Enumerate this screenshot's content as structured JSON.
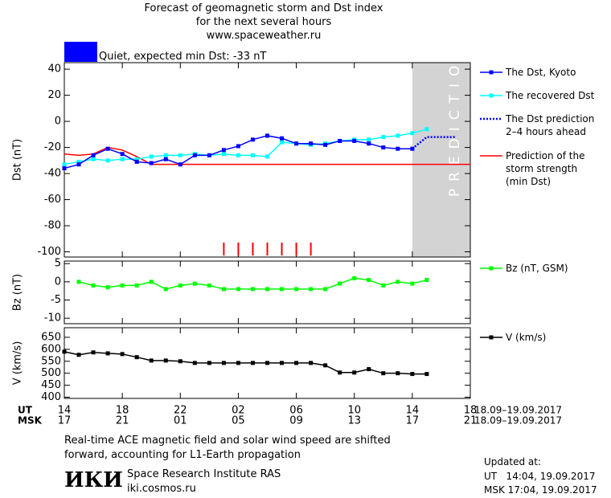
{
  "header": {
    "title_lines": [
      "Forecast of geomagnetic storm and Dst index",
      "for the next several hours",
      "www.spaceweather.ru"
    ],
    "status": "Quiet, expected min Dst: -33 nT",
    "status_color": "#0000ff"
  },
  "chart_data": [
    {
      "type": "line",
      "ylabel": "Dst (nT)",
      "xlim": [
        0,
        28
      ],
      "ylim": [
        -104,
        45
      ],
      "yticks": [
        40,
        20,
        0,
        -20,
        -40,
        -60,
        -80,
        -100
      ],
      "shade_xlim": [
        24,
        28
      ],
      "shade_label": "PREDICTION",
      "shade_color": "#d3d3d3",
      "storm_marks": [
        11,
        12,
        13,
        14,
        15,
        16,
        17
      ],
      "storm_color": "#ff0000",
      "series": [
        {
          "name": "The Dst, Kyoto",
          "color": "#0000ff",
          "marker": true,
          "x": [
            0,
            1,
            2,
            3,
            4,
            5,
            6,
            7,
            8,
            9,
            10,
            11,
            12,
            13,
            14,
            15,
            16,
            17,
            18,
            19,
            20,
            21,
            22,
            23,
            24
          ],
          "values": [
            -36,
            -33,
            -26,
            -21,
            -25,
            -31,
            -32,
            -29,
            -33,
            -26,
            -26,
            -22,
            -19,
            -14,
            -11,
            -13,
            -17,
            -17,
            -18,
            -15,
            -15,
            -17,
            -20,
            -21,
            -21
          ]
        },
        {
          "name": "The recovered Dst",
          "color": "#00ffff",
          "marker": true,
          "x": [
            0,
            1,
            2,
            3,
            4,
            5,
            6,
            7,
            8,
            9,
            10,
            11,
            12,
            13,
            14,
            15,
            16,
            17,
            18,
            19,
            20,
            21,
            22,
            23,
            24,
            25
          ],
          "values": [
            -33,
            -31,
            -29,
            -30,
            -29,
            -29,
            -27,
            -26,
            -26,
            -25,
            -26,
            -25,
            -26,
            -26,
            -27,
            -16,
            -17,
            -18,
            -17,
            -15,
            -14,
            -14,
            -12,
            -11,
            -9,
            -6
          ]
        },
        {
          "name": "The Dst prediction\n2–4 hours ahead",
          "color": "#0000ff",
          "dashed": true,
          "x": [
            24,
            25,
            27
          ],
          "values": [
            -21,
            -12,
            -12
          ]
        },
        {
          "name": "Prediction of the\nstorm strength\n(min Dst)",
          "color": "#ff0000",
          "x": [
            0,
            1,
            2,
            3,
            4,
            5,
            6,
            28
          ],
          "values": [
            -25,
            -26,
            -25,
            -20,
            -22,
            -27,
            -33,
            -33
          ]
        }
      ]
    },
    {
      "type": "line",
      "ylabel": "Bz (nT)",
      "xlim": [
        0,
        28
      ],
      "ylim": [
        -11.5,
        5.7
      ],
      "yticks": [
        5,
        0,
        -5,
        -10
      ],
      "series": [
        {
          "name": "Bz (nT, GSM)",
          "color": "#00ff00",
          "marker": true,
          "x": [
            1,
            2,
            3,
            4,
            5,
            6,
            7,
            8,
            9,
            10,
            11,
            12,
            13,
            14,
            15,
            16,
            17,
            18,
            19,
            20,
            21,
            22,
            23,
            24,
            25
          ],
          "values": [
            0,
            -1,
            -1.5,
            -1,
            -1,
            0,
            -2,
            -1,
            -0.5,
            -1,
            -2,
            -2,
            -2,
            -2,
            -2,
            -2,
            -2,
            -2,
            -0.5,
            1,
            0.5,
            -1,
            0,
            -0.5,
            0.5
          ]
        }
      ]
    },
    {
      "type": "line",
      "ylabel": "V (km/s)",
      "xlim": [
        0,
        28
      ],
      "ylim": [
        395,
        690
      ],
      "yticks": [
        650,
        600,
        550,
        500,
        450,
        400
      ],
      "xticks": [
        {
          "value": 0,
          "label": "14"
        },
        {
          "value": 4,
          "label": "18"
        },
        {
          "value": 8,
          "label": "22"
        },
        {
          "value": 12,
          "label": "02"
        },
        {
          "value": 16,
          "label": "06"
        },
        {
          "value": 20,
          "label": "10"
        },
        {
          "value": 24,
          "label": "14"
        },
        {
          "value": 28,
          "label": "18"
        }
      ],
      "msk_ticks": [
        {
          "value": 0,
          "label": "17"
        },
        {
          "value": 4,
          "label": "21"
        },
        {
          "value": 8,
          "label": "01"
        },
        {
          "value": 12,
          "label": "05"
        },
        {
          "value": 16,
          "label": "09"
        },
        {
          "value": 20,
          "label": "13"
        },
        {
          "value": 24,
          "label": "17"
        },
        {
          "value": 28,
          "label": "21"
        }
      ],
      "x_row_labels": [
        "UT",
        "MSK"
      ],
      "date_range": [
        "18.09–19.09.2017",
        "18.09–19.09.2017"
      ],
      "series": [
        {
          "name": "V (km/s)",
          "color": "#000000",
          "marker": true,
          "x": [
            0,
            1,
            2,
            3,
            4,
            5,
            6,
            7,
            8,
            9,
            10,
            11,
            12,
            13,
            14,
            15,
            16,
            17,
            18,
            19,
            20,
            21,
            22,
            23,
            24,
            25
          ],
          "values": [
            590,
            577,
            587,
            583,
            580,
            567,
            553,
            553,
            550,
            543,
            543,
            543,
            543,
            543,
            543,
            543,
            543,
            543,
            533,
            503,
            503,
            517,
            500,
            500,
            497,
            497
          ]
        }
      ]
    }
  ],
  "footer": {
    "note": "Real-time ACE magnetic field and solar wind speed are shifted\nforward, accounting for L1-Earth propagation",
    "logo": "ИКИ",
    "institute": "Space Research Institute RAS",
    "website": "iki.cosmos.ru",
    "updated_label": "Updated at:",
    "updated_ut": "UT   14:04, 19.09.2017",
    "updated_msk": "MSK 17:04, 19.09.2017"
  }
}
